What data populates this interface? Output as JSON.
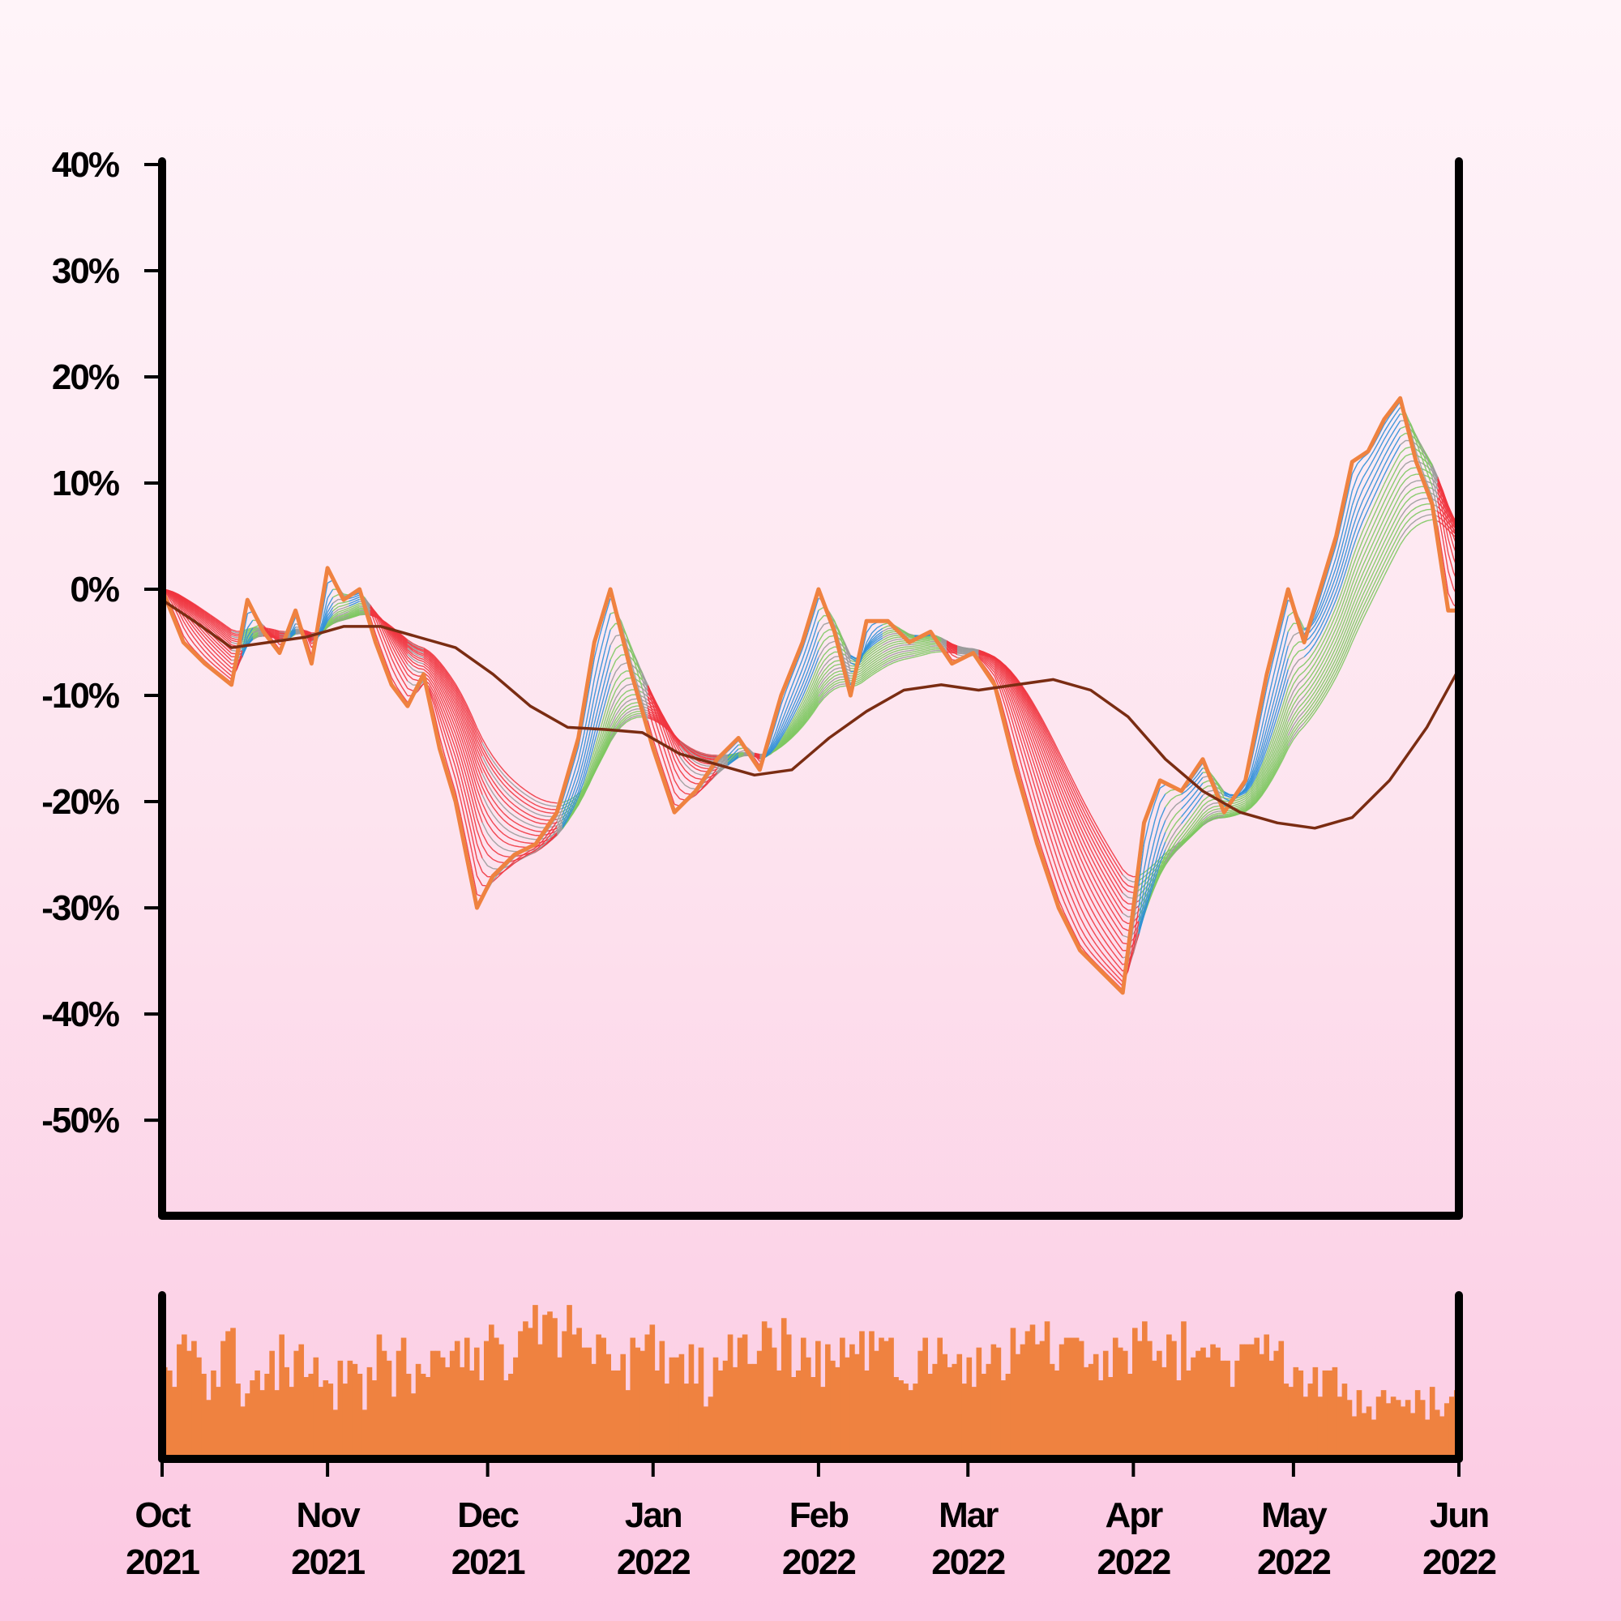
{
  "chart_data": {
    "type": "line",
    "title": "",
    "xlabel": "",
    "ylabel": "",
    "x_ticks": [
      {
        "date": "2021-10-01",
        "month": "Oct",
        "year": "2021"
      },
      {
        "date": "2021-11-01",
        "month": "Nov",
        "year": "2021"
      },
      {
        "date": "2021-12-01",
        "month": "Dec",
        "year": "2021"
      },
      {
        "date": "2022-01-01",
        "month": "Jan",
        "year": "2022"
      },
      {
        "date": "2022-02-01",
        "month": "Feb",
        "year": "2022"
      },
      {
        "date": "2022-03-01",
        "month": "Mar",
        "year": "2022"
      },
      {
        "date": "2022-04-01",
        "month": "Apr",
        "year": "2022"
      },
      {
        "date": "2022-05-01",
        "month": "May",
        "year": "2022"
      },
      {
        "date": "2022-06-01",
        "month": "Jun",
        "year": "2022"
      }
    ],
    "y_ticks": [
      {
        "value": 40,
        "label": "40%"
      },
      {
        "value": 30,
        "label": "30%"
      },
      {
        "value": 20,
        "label": "20%"
      },
      {
        "value": 10,
        "label": "10%"
      },
      {
        "value": 0,
        "label": "0%"
      },
      {
        "value": -10,
        "label": "-10%"
      },
      {
        "value": -20,
        "label": "-20%"
      },
      {
        "value": -30,
        "label": "-30%"
      },
      {
        "value": -40,
        "label": "-40%"
      },
      {
        "value": -50,
        "label": "-50%"
      }
    ],
    "ylim": [
      -59,
      40
    ],
    "xlim": [
      "2021-10-01",
      "2022-06-01"
    ],
    "grid": false,
    "legend": "none",
    "ribbon": {
      "type": "moving-average ribbon of daily % change",
      "short_window_days": 2,
      "long_window_days": 30,
      "ribbon_lines": 20,
      "colors": {
        "up": "#2e8fd8",
        "rising": "#7ec862",
        "down": "#f0353f",
        "neutral": "#9b9b9b"
      }
    },
    "price_series": {
      "color": "#ef8240",
      "x": [
        "2021-10-01",
        "2021-10-05",
        "2021-10-09",
        "2021-10-14",
        "2021-10-17",
        "2021-10-20",
        "2021-10-23",
        "2021-10-26",
        "2021-10-29",
        "2021-11-01",
        "2021-11-04",
        "2021-11-07",
        "2021-11-10",
        "2021-11-13",
        "2021-11-16",
        "2021-11-19",
        "2021-11-22",
        "2021-11-25",
        "2021-11-29",
        "2021-12-02",
        "2021-12-06",
        "2021-12-10",
        "2021-12-14",
        "2021-12-18",
        "2021-12-21",
        "2021-12-24",
        "2021-12-28",
        "2022-01-01",
        "2022-01-05",
        "2022-01-09",
        "2022-01-13",
        "2022-01-17",
        "2022-01-21",
        "2022-01-25",
        "2022-01-29",
        "2022-02-01",
        "2022-02-04",
        "2022-02-07",
        "2022-02-10",
        "2022-02-14",
        "2022-02-18",
        "2022-02-22",
        "2022-02-26",
        "2022-03-02",
        "2022-03-06",
        "2022-03-10",
        "2022-03-14",
        "2022-03-18",
        "2022-03-22",
        "2022-03-26",
        "2022-03-30",
        "2022-04-03",
        "2022-04-06",
        "2022-04-10",
        "2022-04-14",
        "2022-04-18",
        "2022-04-22",
        "2022-04-26",
        "2022-04-30",
        "2022-05-03",
        "2022-05-06",
        "2022-05-09",
        "2022-05-12",
        "2022-05-15",
        "2022-05-18",
        "2022-05-21",
        "2022-05-24",
        "2022-05-27",
        "2022-05-30",
        "2022-06-01"
      ],
      "values": [
        0,
        -5,
        -7,
        -9,
        -1,
        -4,
        -6,
        -2,
        -7,
        2,
        -1,
        0,
        -5,
        -9,
        -11,
        -8,
        -15,
        -20,
        -30,
        -27,
        -25,
        -24,
        -21,
        -14,
        -5,
        0,
        -8,
        -15,
        -21,
        -19,
        -16,
        -14,
        -17,
        -10,
        -5,
        0,
        -4,
        -10,
        -3,
        -3,
        -5,
        -4,
        -7,
        -6,
        -9,
        -17,
        -24,
        -30,
        -34,
        -36,
        -38,
        -22,
        -18,
        -19,
        -16,
        -21,
        -18,
        -8,
        0,
        -5,
        0,
        5,
        12,
        13,
        16,
        18,
        12,
        8,
        -2,
        -2
      ]
    },
    "long_ma_series": {
      "color": "#7a2c12",
      "x": [
        "2021-10-01",
        "2021-10-07",
        "2021-10-14",
        "2021-10-21",
        "2021-10-28",
        "2021-11-04",
        "2021-11-11",
        "2021-11-18",
        "2021-11-25",
        "2021-12-02",
        "2021-12-09",
        "2021-12-16",
        "2021-12-23",
        "2021-12-30",
        "2022-01-06",
        "2022-01-13",
        "2022-01-20",
        "2022-01-27",
        "2022-02-03",
        "2022-02-10",
        "2022-02-17",
        "2022-02-24",
        "2022-03-03",
        "2022-03-10",
        "2022-03-17",
        "2022-03-24",
        "2022-03-31",
        "2022-04-07",
        "2022-04-14",
        "2022-04-21",
        "2022-04-28",
        "2022-05-05",
        "2022-05-12",
        "2022-05-19",
        "2022-05-26",
        "2022-06-01"
      ],
      "values": [
        -1,
        -3,
        -5.5,
        -5,
        -4.5,
        -3.5,
        -3.5,
        -4.5,
        -5.5,
        -8,
        -11,
        -13,
        -13.2,
        -13.5,
        -15.5,
        -16.5,
        -17.5,
        -17,
        -14,
        -11.5,
        -9.5,
        -9,
        -9.5,
        -9,
        -8.5,
        -9.5,
        -12,
        -16,
        -19,
        -21,
        -22,
        -22.5,
        -21.5,
        -18,
        -13,
        -7.5
      ]
    },
    "volume_bars": [
      28,
      27,
      22,
      35,
      38,
      33,
      36,
      31,
      26,
      18,
      27,
      22,
      36,
      39,
      40,
      23,
      16,
      20,
      24,
      27,
      21,
      26,
      33,
      21,
      38,
      28,
      22,
      33,
      35,
      25,
      26,
      31,
      22,
      24,
      23,
      15,
      30,
      23,
      30,
      29,
      26,
      15,
      28,
      24,
      38,
      33,
      30,
      19,
      33,
      37,
      26,
      20,
      29,
      26,
      25,
      33,
      33,
      31,
      28,
      33,
      36,
      28,
      37,
      27,
      34,
      24,
      36,
      41,
      37,
      35,
      24,
      26,
      31,
      39,
      42,
      40,
      47,
      35,
      44,
      45,
      43,
      31,
      39,
      47,
      38,
      40,
      34,
      34,
      29,
      38,
      37,
      32,
      27,
      27,
      32,
      21,
      37,
      34,
      33,
      38,
      41,
      27,
      36,
      23,
      31,
      31,
      32,
      23,
      35,
      23,
      34,
      16,
      19,
      31,
      27,
      30,
      38,
      28,
      37,
      38,
      29,
      29,
      33,
      42,
      40,
      34,
      27,
      43,
      38,
      25,
      27,
      37,
      31,
      25,
      36,
      22,
      35,
      30,
      28,
      37,
      31,
      35,
      32,
      39,
      27,
      39,
      33,
      37,
      36,
      37,
      25,
      24,
      23,
      21,
      23,
      33,
      37,
      26,
      29,
      37,
      32,
      28,
      29,
      32,
      23,
      31,
      22,
      34,
      26,
      29,
      35,
      34,
      24,
      26,
      40,
      32,
      35,
      39,
      41,
      35,
      36,
      42,
      29,
      27,
      35,
      37,
      37,
      37,
      36,
      28,
      29,
      32,
      24,
      33,
      25,
      37,
      34,
      33,
      26,
      40,
      36,
      42,
      36,
      30,
      33,
      28,
      38,
      36,
      24,
      42,
      27,
      31,
      33,
      34,
      31,
      35,
      34,
      30,
      30,
      22,
      30,
      35,
      35,
      35,
      37,
      32,
      38,
      30,
      33,
      36,
      23,
      22,
      28,
      27,
      19,
      23,
      28,
      19,
      27,
      27,
      28,
      19,
      23,
      18,
      13,
      21,
      14,
      16,
      12,
      19,
      21,
      17,
      19,
      18,
      16,
      18,
      14,
      21,
      18,
      12,
      22,
      15,
      13,
      17,
      19,
      21
    ]
  }
}
